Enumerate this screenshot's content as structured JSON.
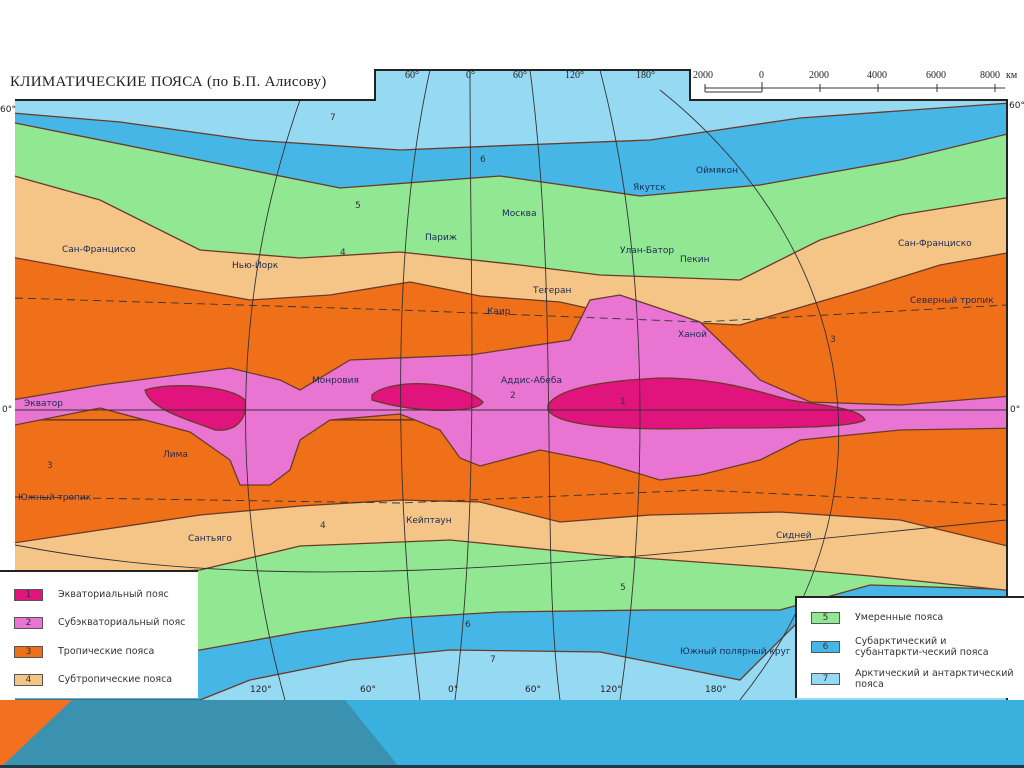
{
  "title": "КЛИМАТИЧЕСКИЕ ПОЯСА (по Б.П. Алисову)",
  "scale": {
    "ticks": [
      "2000",
      "0",
      "2000",
      "4000",
      "6000",
      "8000"
    ],
    "unit": "км"
  },
  "longitudes_top": [
    "60°",
    "0°",
    "60°",
    "120°",
    "180°"
  ],
  "longitudes_bottom": [
    "120°",
    "60°",
    "0°",
    "60°",
    "120°",
    "180°"
  ],
  "latitudes": {
    "north": "60°",
    "equator": "0°"
  },
  "lines": {
    "equator": "Экватор",
    "north_tropic": "Северный тропик",
    "south_tropic": "Южный тропик",
    "south_polar": "Южный полярный круг"
  },
  "cities": [
    "Сан-Франциско",
    "Нью-Йорк",
    "Париж",
    "Москва",
    "Якутск",
    "Оймякон",
    "Улан-Батор",
    "Пекин",
    "Тегеран",
    "Каир",
    "Ханой",
    "Монровия",
    "Аддис-Абеба",
    "Лима",
    "Сантьяго",
    "Кейптаун",
    "Сидней",
    "Сан-Франциско"
  ],
  "legend": [
    {
      "num": "1",
      "label": "Экваториальный пояс",
      "color": "#e0147c"
    },
    {
      "num": "2",
      "label": "Субэкваториальный пояс",
      "color": "#ea74d2"
    },
    {
      "num": "3",
      "label": "Тропические пояса",
      "color": "#f0701a"
    },
    {
      "num": "4",
      "label": "Субтропические пояса",
      "color": "#f5c487"
    },
    {
      "num": "5",
      "label": "Умеренные пояса",
      "color": "#92e792"
    },
    {
      "num": "6",
      "label": "Субарктический и субантаркти-ческий пояса",
      "color": "#46b6e6"
    },
    {
      "num": "7",
      "label": "Арктический и антарктический пояса",
      "color": "#96d9f2"
    }
  ],
  "zone_numbers": [
    "7",
    "6",
    "5",
    "4",
    "3",
    "2",
    "1",
    "3",
    "4",
    "5",
    "6",
    "7"
  ],
  "banner_colors": {
    "main": "#3ab0de",
    "dark": "#3b92b0",
    "accent": "#f37021"
  }
}
